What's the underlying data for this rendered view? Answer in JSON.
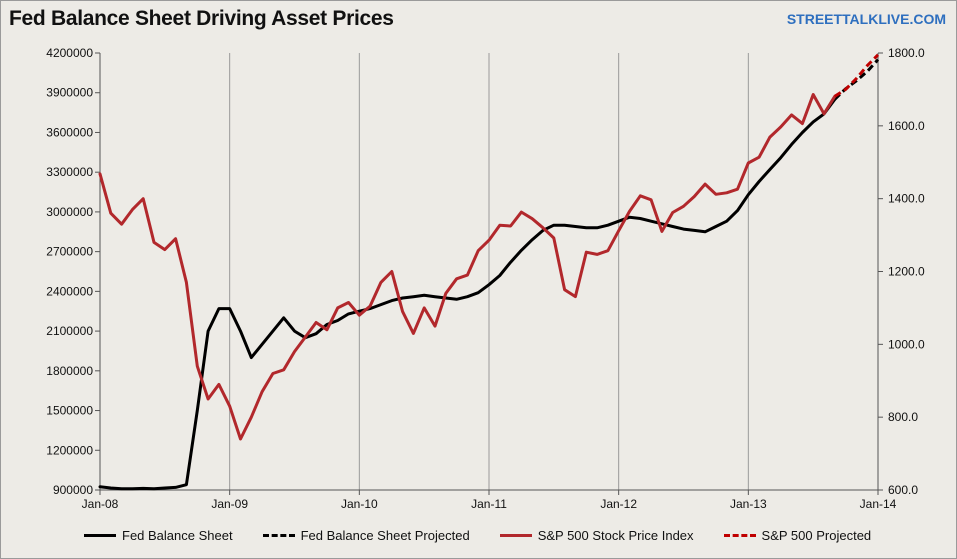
{
  "title": "Fed Balance Sheet Driving Asset Prices",
  "watermark": "STREETTALKLIVE.COM",
  "chart_data": {
    "type": "line",
    "title": "Fed Balance Sheet Driving Asset Prices",
    "x_tick_labels": [
      "Jan-08",
      "Jan-09",
      "Jan-10",
      "Jan-11",
      "Jan-12",
      "Jan-13",
      "Jan-14"
    ],
    "xlim": [
      "2008-01",
      "2014-01"
    ],
    "y_left": {
      "ylim": [
        900000,
        4200000
      ],
      "ticks": [
        900000,
        1200000,
        1500000,
        1800000,
        2100000,
        2400000,
        2700000,
        3000000,
        3300000,
        3600000,
        3900000,
        4200000
      ],
      "tick_labels": [
        "900000",
        "1200000",
        "1500000",
        "1800000",
        "2100000",
        "2400000",
        "2700000",
        "3000000",
        "3300000",
        "3600000",
        "3900000",
        "4200000"
      ]
    },
    "y_right": {
      "ylim": [
        600,
        1800
      ],
      "ticks": [
        600,
        800,
        1000,
        1200,
        1400,
        1600,
        1800
      ],
      "tick_labels": [
        "600.0",
        "800.0",
        "1000.0",
        "1200.0",
        "1400.0",
        "1600.0",
        "1800.0"
      ]
    },
    "grid": "vertical",
    "legend_position": "bottom",
    "series": [
      {
        "name": "Fed Balance Sheet",
        "axis": "left",
        "color": "#000000",
        "style": "solid",
        "points": [
          [
            "2008-01",
            925000
          ],
          [
            "2008-02",
            915000
          ],
          [
            "2008-03",
            910000
          ],
          [
            "2008-04",
            910000
          ],
          [
            "2008-05",
            912000
          ],
          [
            "2008-06",
            910000
          ],
          [
            "2008-07",
            915000
          ],
          [
            "2008-08",
            920000
          ],
          [
            "2008-09",
            940000
          ],
          [
            "2008-10",
            1500000
          ],
          [
            "2008-11",
            2100000
          ],
          [
            "2008-12",
            2270000
          ],
          [
            "2009-01",
            2270000
          ],
          [
            "2009-02",
            2100000
          ],
          [
            "2009-03",
            1900000
          ],
          [
            "2009-04",
            2000000
          ],
          [
            "2009-05",
            2100000
          ],
          [
            "2009-06",
            2200000
          ],
          [
            "2009-07",
            2100000
          ],
          [
            "2009-08",
            2050000
          ],
          [
            "2009-09",
            2080000
          ],
          [
            "2009-10",
            2150000
          ],
          [
            "2009-11",
            2180000
          ],
          [
            "2009-12",
            2230000
          ],
          [
            "2010-01",
            2250000
          ],
          [
            "2010-02",
            2270000
          ],
          [
            "2010-03",
            2300000
          ],
          [
            "2010-04",
            2330000
          ],
          [
            "2010-05",
            2350000
          ],
          [
            "2010-06",
            2360000
          ],
          [
            "2010-07",
            2370000
          ],
          [
            "2010-08",
            2360000
          ],
          [
            "2010-09",
            2350000
          ],
          [
            "2010-10",
            2340000
          ],
          [
            "2010-11",
            2360000
          ],
          [
            "2010-12",
            2390000
          ],
          [
            "2011-01",
            2450000
          ],
          [
            "2011-02",
            2520000
          ],
          [
            "2011-03",
            2620000
          ],
          [
            "2011-04",
            2710000
          ],
          [
            "2011-05",
            2790000
          ],
          [
            "2011-06",
            2860000
          ],
          [
            "2011-07",
            2900000
          ],
          [
            "2011-08",
            2900000
          ],
          [
            "2011-09",
            2890000
          ],
          [
            "2011-10",
            2880000
          ],
          [
            "2011-11",
            2880000
          ],
          [
            "2011-12",
            2900000
          ],
          [
            "2012-01",
            2930000
          ],
          [
            "2012-02",
            2960000
          ],
          [
            "2012-03",
            2950000
          ],
          [
            "2012-04",
            2930000
          ],
          [
            "2012-05",
            2910000
          ],
          [
            "2012-06",
            2890000
          ],
          [
            "2012-07",
            2870000
          ],
          [
            "2012-08",
            2860000
          ],
          [
            "2012-09",
            2850000
          ],
          [
            "2012-10",
            2890000
          ],
          [
            "2012-11",
            2930000
          ],
          [
            "2012-12",
            3010000
          ],
          [
            "2013-01",
            3130000
          ],
          [
            "2013-02",
            3230000
          ],
          [
            "2013-03",
            3320000
          ],
          [
            "2013-04",
            3410000
          ],
          [
            "2013-05",
            3510000
          ],
          [
            "2013-06",
            3600000
          ],
          [
            "2013-07",
            3680000
          ],
          [
            "2013-08",
            3740000
          ],
          [
            "2013-09",
            3850000
          ]
        ]
      },
      {
        "name": "Fed Balance Sheet Projected",
        "axis": "left",
        "color": "#000000",
        "style": "dashed",
        "points": [
          [
            "2013-09",
            3850000
          ],
          [
            "2013-10",
            3930000
          ],
          [
            "2013-11",
            3990000
          ],
          [
            "2013-12",
            4060000
          ],
          [
            "2014-01",
            4150000
          ]
        ]
      },
      {
        "name": "S&P 500 Stock Price Index",
        "axis": "right",
        "color": "#b2282c",
        "style": "solid",
        "points": [
          [
            "2008-01",
            1468
          ],
          [
            "2008-02",
            1360
          ],
          [
            "2008-03",
            1330
          ],
          [
            "2008-04",
            1370
          ],
          [
            "2008-05",
            1400
          ],
          [
            "2008-06",
            1280
          ],
          [
            "2008-07",
            1260
          ],
          [
            "2008-08",
            1290
          ],
          [
            "2008-09",
            1170
          ],
          [
            "2008-10",
            940
          ],
          [
            "2008-11",
            850
          ],
          [
            "2008-12",
            890
          ],
          [
            "2009-01",
            830
          ],
          [
            "2009-02",
            740
          ],
          [
            "2009-03",
            800
          ],
          [
            "2009-04",
            870
          ],
          [
            "2009-05",
            920
          ],
          [
            "2009-06",
            930
          ],
          [
            "2009-07",
            980
          ],
          [
            "2009-08",
            1020
          ],
          [
            "2009-09",
            1060
          ],
          [
            "2009-10",
            1040
          ],
          [
            "2009-11",
            1100
          ],
          [
            "2009-12",
            1115
          ],
          [
            "2010-01",
            1080
          ],
          [
            "2010-02",
            1105
          ],
          [
            "2010-03",
            1170
          ],
          [
            "2010-04",
            1200
          ],
          [
            "2010-05",
            1090
          ],
          [
            "2010-06",
            1030
          ],
          [
            "2010-07",
            1100
          ],
          [
            "2010-08",
            1050
          ],
          [
            "2010-09",
            1140
          ],
          [
            "2010-10",
            1180
          ],
          [
            "2010-11",
            1190
          ],
          [
            "2010-12",
            1257
          ],
          [
            "2011-01",
            1286
          ],
          [
            "2011-02",
            1327
          ],
          [
            "2011-03",
            1325
          ],
          [
            "2011-04",
            1363
          ],
          [
            "2011-05",
            1345
          ],
          [
            "2011-06",
            1320
          ],
          [
            "2011-07",
            1292
          ],
          [
            "2011-08",
            1150
          ],
          [
            "2011-09",
            1131
          ],
          [
            "2011-10",
            1253
          ],
          [
            "2011-11",
            1247
          ],
          [
            "2011-12",
            1257
          ],
          [
            "2012-01",
            1312
          ],
          [
            "2012-02",
            1365
          ],
          [
            "2012-03",
            1408
          ],
          [
            "2012-04",
            1397
          ],
          [
            "2012-05",
            1310
          ],
          [
            "2012-06",
            1362
          ],
          [
            "2012-07",
            1379
          ],
          [
            "2012-08",
            1406
          ],
          [
            "2012-09",
            1440
          ],
          [
            "2012-10",
            1412
          ],
          [
            "2012-11",
            1416
          ],
          [
            "2012-12",
            1426
          ],
          [
            "2013-01",
            1498
          ],
          [
            "2013-02",
            1514
          ],
          [
            "2013-03",
            1569
          ],
          [
            "2013-04",
            1597
          ],
          [
            "2013-05",
            1630
          ],
          [
            "2013-06",
            1606
          ],
          [
            "2013-07",
            1686
          ],
          [
            "2013-08",
            1633
          ],
          [
            "2013-09",
            1681
          ]
        ]
      },
      {
        "name": "S&P 500 Projected",
        "axis": "right",
        "color": "#c00000",
        "style": "dashed",
        "points": [
          [
            "2013-09",
            1681
          ],
          [
            "2013-10",
            1700
          ],
          [
            "2013-11",
            1730
          ],
          [
            "2013-12",
            1765
          ],
          [
            "2014-01",
            1795
          ]
        ]
      }
    ]
  }
}
